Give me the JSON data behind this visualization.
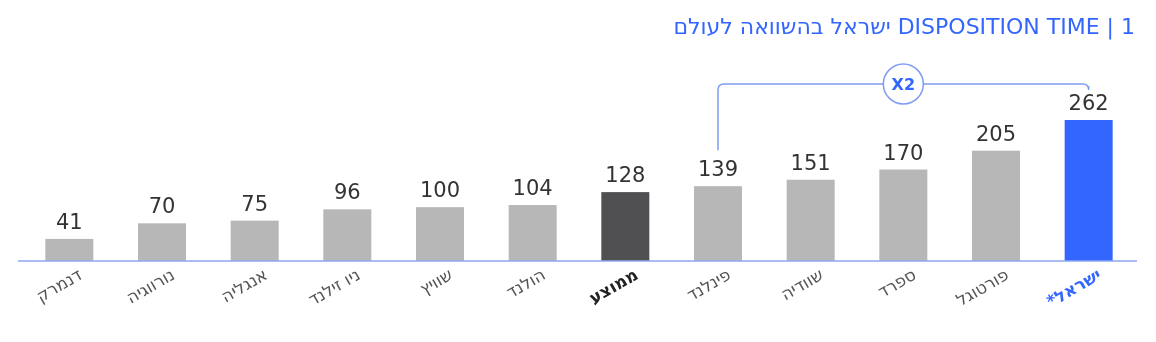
{
  "chart_data": {
    "type": "bar",
    "title": "1 | DISPOSITION TIME ישראל בהשוואה לעולם",
    "categories": [
      "דנמרק",
      "נורווגיה",
      "אנגליה",
      "ניו זילנד",
      "שוויץ",
      "הולנד",
      "ממוצע",
      "פינלנד",
      "שוודיה",
      "ספרד",
      "פורטוגל",
      "ישראל*"
    ],
    "values": [
      41,
      70,
      75,
      96,
      100,
      104,
      128,
      139,
      151,
      170,
      205,
      262
    ],
    "colors": [
      "#b7b7b7",
      "#b7b7b7",
      "#b7b7b7",
      "#b7b7b7",
      "#b7b7b7",
      "#b7b7b7",
      "#505052",
      "#b7b7b7",
      "#b7b7b7",
      "#b7b7b7",
      "#b7b7b7",
      "#3366ff"
    ],
    "data_labels": true,
    "annotations": [
      "X2"
    ]
  }
}
